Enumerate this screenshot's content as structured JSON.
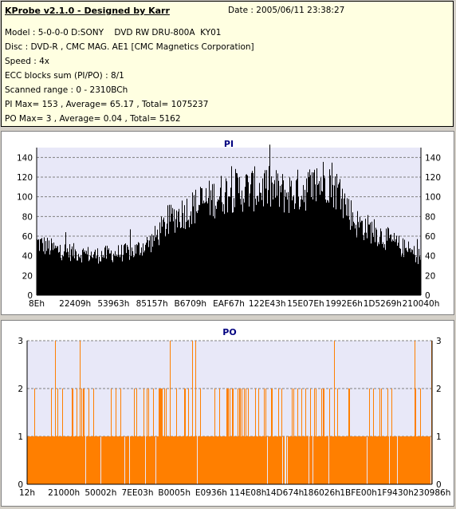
{
  "header": {
    "title": "KProbe v2.1.0 - Designed by Karr",
    "date": "Date : 2005/06/11 23:38:27",
    "lines": [
      "Model : 5-0-0-0 D:SONY    DVD RW DRU-800A  KY01",
      "Disc : DVD-R , CMC MAG. AE1 [CMC Magnetics Corporation]",
      "Speed : 4x",
      "ECC blocks sum (PI/PO) : 8/1",
      "Scanned range : 0 - 2310BCh",
      "PI Max= 153 , Average= 65.17 , Total= 1075237",
      "PO Max= 3 , Average= 0.04 , Total= 5162"
    ]
  },
  "chart_data": [
    {
      "type": "bar",
      "title": "PI",
      "ylim": [
        0,
        150
      ],
      "yticks": [
        0,
        20,
        40,
        60,
        80,
        100,
        120,
        140
      ],
      "xtick_labels": [
        "8Eh",
        "22409h",
        "53963h",
        "85157h",
        "B6709h",
        "EAF67h",
        "122E43h",
        "15E07Eh",
        "1992E6h",
        "1D5269h",
        "210040h"
      ],
      "profile": [
        [
          0.0,
          58
        ],
        [
          0.05,
          50
        ],
        [
          0.15,
          44
        ],
        [
          0.25,
          48
        ],
        [
          0.3,
          60
        ],
        [
          0.35,
          85
        ],
        [
          0.42,
          100
        ],
        [
          0.5,
          115
        ],
        [
          0.6,
          118
        ],
        [
          0.65,
          112
        ],
        [
          0.72,
          120
        ],
        [
          0.76,
          130
        ],
        [
          0.79,
          110
        ],
        [
          0.83,
          80
        ],
        [
          0.88,
          70
        ],
        [
          0.94,
          55
        ],
        [
          1.0,
          42
        ]
      ],
      "max": 153,
      "average": 65.17,
      "color": "#000000"
    },
    {
      "type": "bar",
      "title": "PO",
      "ylim": [
        0,
        3
      ],
      "yticks": [
        0,
        1,
        2,
        3
      ],
      "xtick_labels": [
        "12h",
        "21000h",
        "50002h",
        "7EE03h",
        "B0005h",
        "E0936h",
        "114E08h",
        "14D674h",
        "186026h",
        "1BFE00h",
        "1F9430h",
        "230986h"
      ],
      "max": 3,
      "average": 0.04,
      "color": "#ff7f00"
    }
  ]
}
